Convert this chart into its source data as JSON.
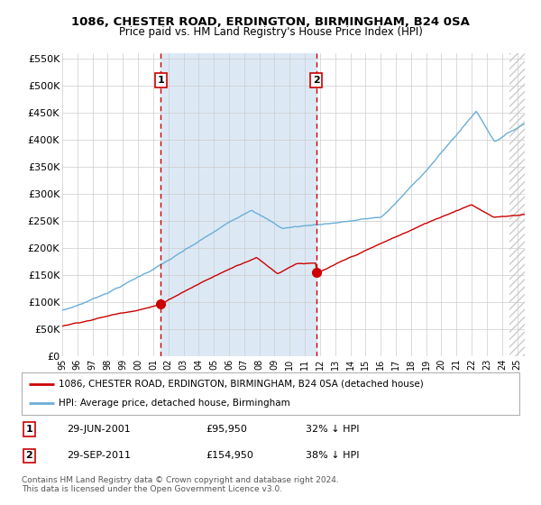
{
  "title1": "1086, CHESTER ROAD, ERDINGTON, BIRMINGHAM, B24 0SA",
  "title2": "Price paid vs. HM Land Registry's House Price Index (HPI)",
  "ylim": [
    0,
    560000
  ],
  "yticks": [
    0,
    50000,
    100000,
    150000,
    200000,
    250000,
    300000,
    350000,
    400000,
    450000,
    500000,
    550000
  ],
  "plot_bg": "#ffffff",
  "shade_color": "#dce9f5",
  "hatch_color": "#cccccc",
  "grid_color": "#cccccc",
  "hpi_color": "#6baed6",
  "price_color": "#cc0000",
  "vline_color": "#cc0000",
  "legend_label1": "1086, CHESTER ROAD, ERDINGTON, BIRMINGHAM, B24 0SA (detached house)",
  "legend_label2": "HPI: Average price, detached house, Birmingham",
  "note1_num": "1",
  "note1_date": "29-JUN-2001",
  "note1_price": "£95,950",
  "note1_hpi": "32% ↓ HPI",
  "note2_num": "2",
  "note2_date": "29-SEP-2011",
  "note2_price": "£154,950",
  "note2_hpi": "38% ↓ HPI",
  "footer": "Contains HM Land Registry data © Crown copyright and database right 2024.\nThis data is licensed under the Open Government Licence v3.0.",
  "marker1_x": 2001.5,
  "marker1_y": 95950,
  "marker2_x": 2011.75,
  "marker2_y": 154950,
  "xlim_start": 1995.0,
  "xlim_end": 2025.5,
  "hatch_start": 2024.5
}
